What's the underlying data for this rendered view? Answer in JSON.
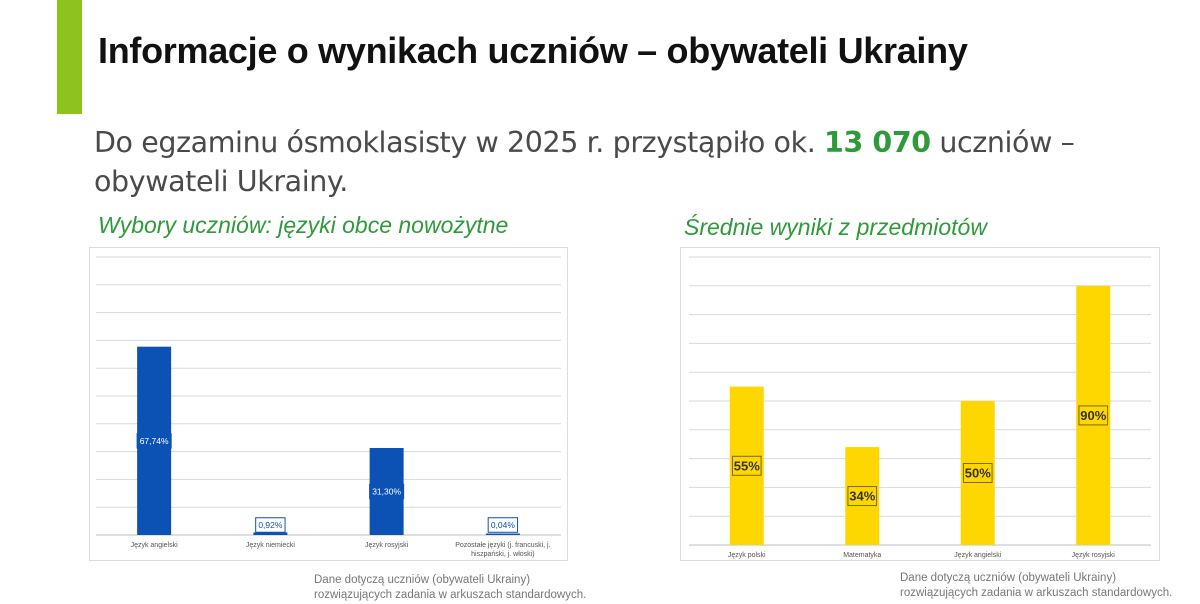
{
  "slide": {
    "title": "Informacje o wynikach uczniów – obywateli Ukrainy",
    "lead_before": "Do egzaminu ósmoklasisty w 2025 r. przystąpiło ok. ",
    "lead_highlight": "13 070",
    "lead_after": " uczniów – obywateli Ukrainy.",
    "left_heading": "Wybory uczniów: języki obce nowożytne",
    "right_heading": "Średnie wyniki z przedmiotów",
    "note_left_line1": "Dane dotyczą uczniów (obywateli Ukrainy)",
    "note_left_line2": "rozwiązujących zadania w arkuszach standardowych.",
    "note_right_line1": "Dane dotyczą uczniów (obywateli Ukrainy)",
    "note_right_line2": "rozwiązujących zadania w arkuszach standardowych.",
    "colors": {
      "accent": "#8dc21f",
      "green_text": "#2f9a3a",
      "blue_bar": "#0b52b4",
      "yellow_bar": "#ffd700"
    }
  },
  "chart_data": [
    {
      "type": "bar",
      "title": "Wybory uczniów: języki obce nowożytne",
      "categories": [
        "Język angielski",
        "Język niemiecki",
        "Język rosyjski",
        "Pozostałe języki (j. francuski, j. hiszpański, j. włoski)"
      ],
      "category_lines": [
        [
          "Język angielski"
        ],
        [
          "Język niemiecki"
        ],
        [
          "Język rosyjski"
        ],
        [
          "Pozostałe języki (j. francuski, j.",
          "hiszpański, j. włoski)"
        ]
      ],
      "values": [
        67.74,
        0.92,
        31.3,
        0.04
      ],
      "data_labels": [
        "67,74%",
        "0,92%",
        "31,30%",
        "0,04%"
      ],
      "ylim": [
        0,
        100
      ],
      "grid": true,
      "color": "#0b52b4"
    },
    {
      "type": "bar",
      "title": "Średnie wyniki z przedmiotów",
      "categories": [
        "Język polski",
        "Matematyka",
        "Język angielski",
        "Język rosyjski"
      ],
      "category_lines": [
        [
          "Język polski"
        ],
        [
          "Matematyka"
        ],
        [
          "Język angielski"
        ],
        [
          "Język rosyjski"
        ]
      ],
      "values": [
        55,
        34,
        50,
        90
      ],
      "data_labels": [
        "55%",
        "34%",
        "50%",
        "90%"
      ],
      "ylim": [
        0,
        100
      ],
      "grid": true,
      "color": "#ffd700"
    }
  ]
}
